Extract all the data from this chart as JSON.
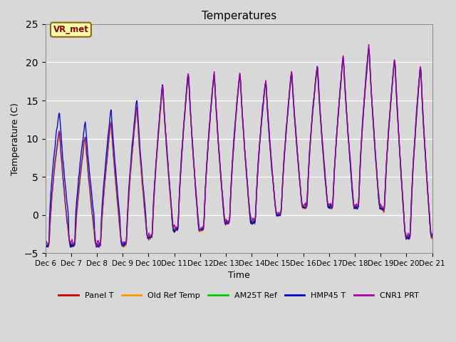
{
  "title": "Temperatures",
  "ylabel": "Temperature (C)",
  "xlabel": "Time",
  "annotation": "VR_met",
  "ylim": [
    -5,
    25
  ],
  "xlim": [
    6,
    21
  ],
  "series": {
    "Panel T": {
      "color": "#cc0000",
      "lw": 1.0
    },
    "Old Ref Temp": {
      "color": "#ff9900",
      "lw": 1.0
    },
    "AM25T Ref": {
      "color": "#00cc00",
      "lw": 1.0
    },
    "HMP45 T": {
      "color": "#0000cc",
      "lw": 1.0
    },
    "CNR1 PRT": {
      "color": "#aa00aa",
      "lw": 1.0
    }
  },
  "bg_color": "#d8d8d8",
  "ax_bg_color": "#d8d8d8",
  "tick_labels": [
    "Dec 6",
    "Dec 7",
    "Dec 8",
    "Dec 9",
    "Dec 10",
    "Dec 11",
    "Dec 12",
    "Dec 13",
    "Dec 14",
    "Dec 15",
    "Dec 16",
    "Dec 17",
    "Dec 18",
    "Dec 19",
    "Dec 20",
    "Dec 21"
  ],
  "yticks": [
    -5,
    0,
    5,
    10,
    15,
    20,
    25
  ],
  "day_peaks": [
    13,
    10,
    11,
    14,
    15,
    19,
    19,
    19,
    19,
    17,
    21,
    19,
    23,
    22,
    20
  ],
  "night_mins": [
    -4,
    -4,
    -4,
    -4,
    -3,
    -2,
    -2,
    -1,
    -1,
    0,
    1,
    1,
    1,
    1,
    -3
  ]
}
